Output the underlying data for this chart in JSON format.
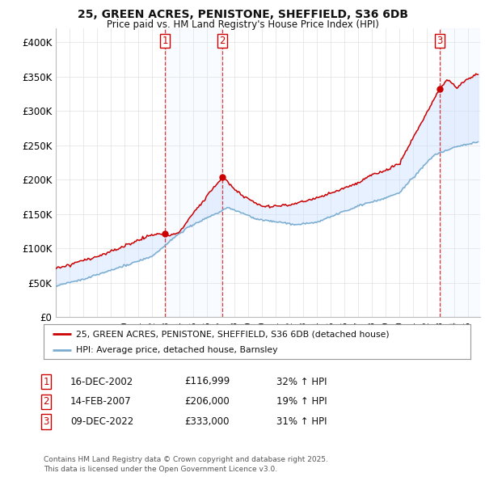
{
  "title1": "25, GREEN ACRES, PENISTONE, SHEFFIELD, S36 6DB",
  "title2": "Price paid vs. HM Land Registry's House Price Index (HPI)",
  "ylim": [
    0,
    420000
  ],
  "yticks": [
    0,
    50000,
    100000,
    150000,
    200000,
    250000,
    300000,
    350000,
    400000
  ],
  "ytick_labels": [
    "£0",
    "£50K",
    "£100K",
    "£150K",
    "£200K",
    "£250K",
    "£300K",
    "£350K",
    "£400K"
  ],
  "xlim_start": 1995.0,
  "xlim_end": 2025.9,
  "sale_dates": [
    2002.96,
    2007.12,
    2022.94
  ],
  "sale_prices": [
    116999,
    206000,
    333000
  ],
  "sale_labels": [
    "1",
    "2",
    "3"
  ],
  "vline_color": "#cc0000",
  "shade_color": "#cce0ff",
  "shade_alpha": 0.45,
  "red_line_color": "#cc0000",
  "blue_line_color": "#7aadcf",
  "legend_label1": "25, GREEN ACRES, PENISTONE, SHEFFIELD, S36 6DB (detached house)",
  "legend_label2": "HPI: Average price, detached house, Barnsley",
  "table_data": [
    [
      "1",
      "16-DEC-2002",
      "£116,999",
      "32% ↑ HPI"
    ],
    [
      "2",
      "14-FEB-2007",
      "£206,000",
      "19% ↑ HPI"
    ],
    [
      "3",
      "09-DEC-2022",
      "£333,000",
      "31% ↑ HPI"
    ]
  ],
  "footer": "Contains HM Land Registry data © Crown copyright and database right 2025.\nThis data is licensed under the Open Government Licence v3.0.",
  "background_color": "#ffffff",
  "grid_color": "#e0e0e0"
}
